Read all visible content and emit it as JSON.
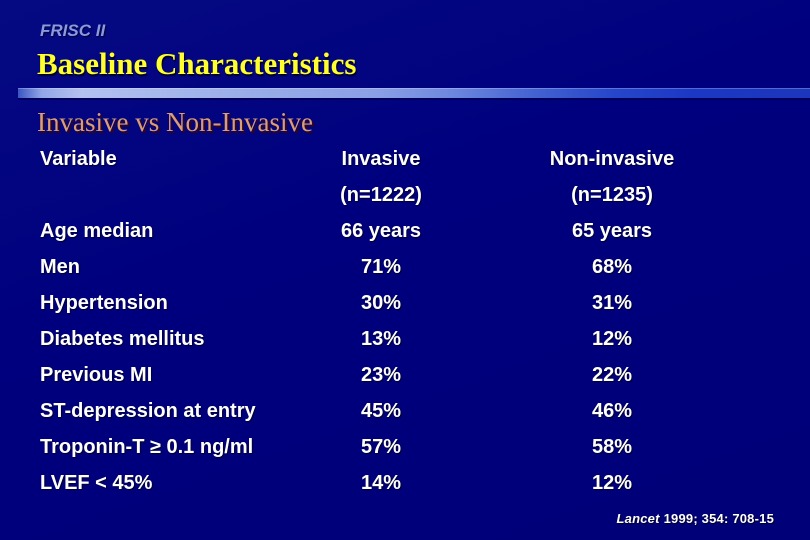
{
  "slide": {
    "kicker": "FRISC II",
    "title": "Baseline Characteristics",
    "subtitle": "Invasive vs Non-Invasive",
    "citation": {
      "journal": "Lancet",
      "reference": "1999; 354: 708-15"
    }
  },
  "table": {
    "columns": {
      "variable": "Variable",
      "invasive": "Invasive",
      "non_invasive": "Non-invasive"
    },
    "subheaders": {
      "variable": "",
      "invasive": "(n=1222)",
      "non_invasive": "(n=1235)"
    },
    "rows": [
      {
        "label": "Age median",
        "invasive": "66 years",
        "non_invasive": "65 years"
      },
      {
        "label": "Men",
        "invasive": "71%",
        "non_invasive": "68%"
      },
      {
        "label": "Hypertension",
        "invasive": "30%",
        "non_invasive": "31%"
      },
      {
        "label": "Diabetes mellitus",
        "invasive": "13%",
        "non_invasive": "12%"
      },
      {
        "label": "Previous MI",
        "invasive": "23%",
        "non_invasive": "22%"
      },
      {
        "label": "ST-depression at entry",
        "invasive": "45%",
        "non_invasive": "46%"
      },
      {
        "label": "Troponin-T ≥ 0.1 ng/ml",
        "invasive": "57%",
        "non_invasive": "58%"
      },
      {
        "label": "LVEF < 45%",
        "invasive": "14%",
        "non_invasive": "12%"
      }
    ]
  },
  "colors": {
    "background": "#00007e",
    "kicker_text": "#8a9ade",
    "title_text": "#ffff2e",
    "subtitle_text": "#d89d7b",
    "body_text": "#ffffff"
  }
}
